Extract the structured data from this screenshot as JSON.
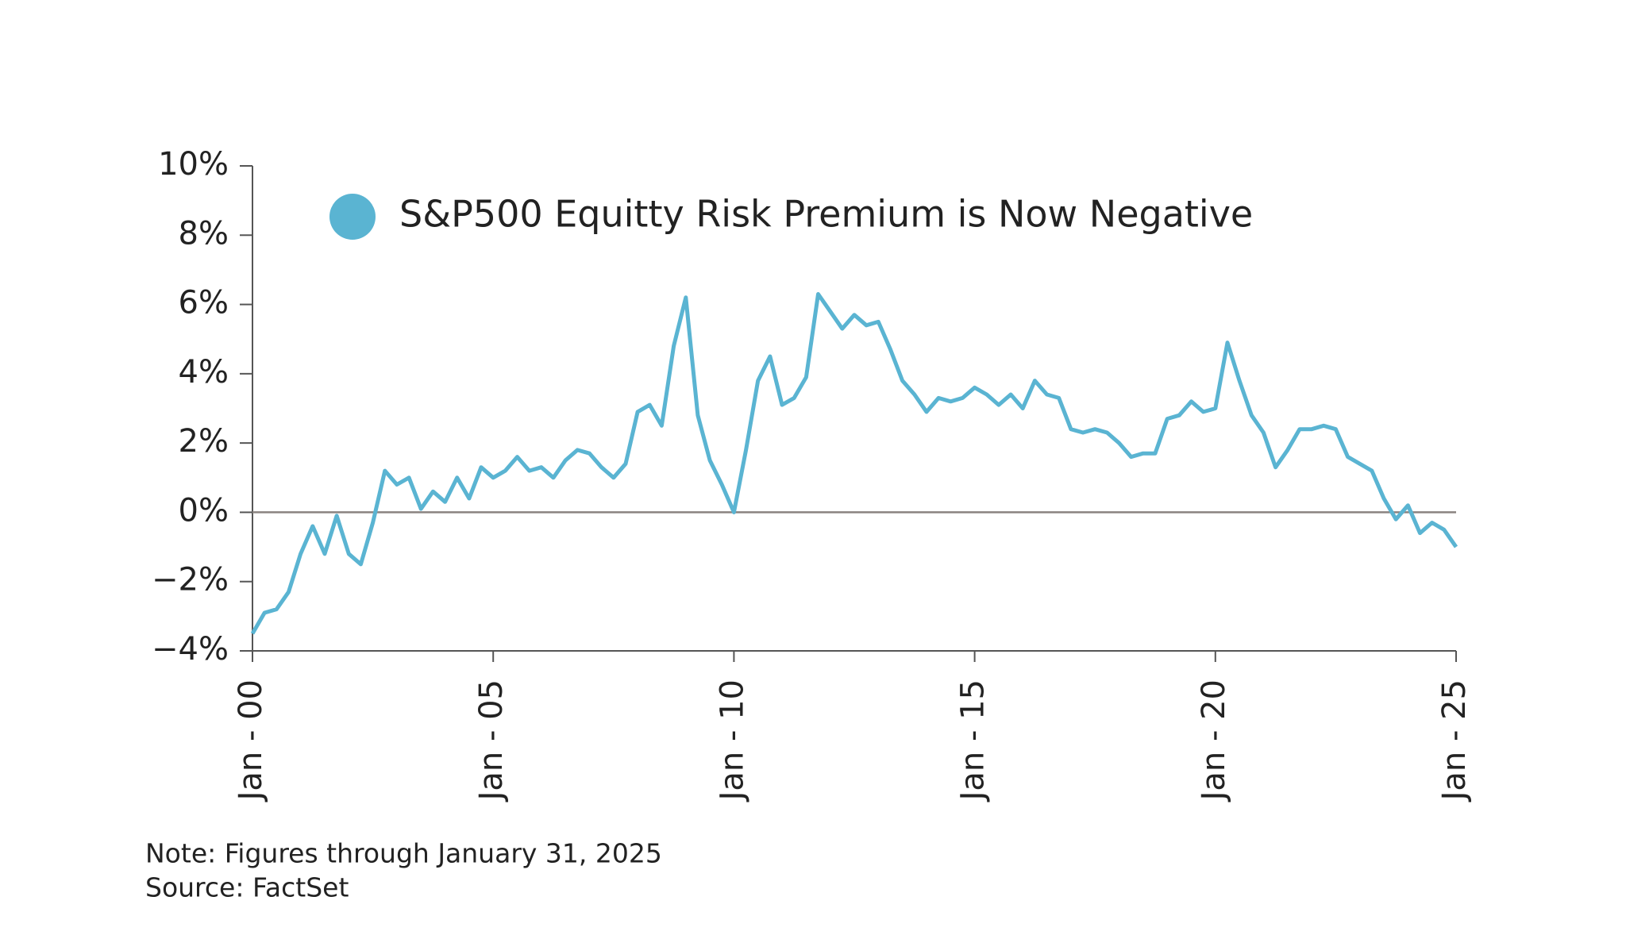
{
  "chart_data": {
    "type": "line",
    "xlim": [
      2000,
      2025
    ],
    "xticks": [
      {
        "value": 2000,
        "label": "Jan - 00"
      },
      {
        "value": 2005,
        "label": "Jan - 05"
      },
      {
        "value": 2010,
        "label": "Jan - 10"
      },
      {
        "value": 2015,
        "label": "Jan - 15"
      },
      {
        "value": 2020,
        "label": "Jan - 20"
      },
      {
        "value": 2025,
        "label": "Jan - 25"
      }
    ],
    "ylim": [
      -4,
      10
    ],
    "yticks": [
      {
        "value": 10,
        "label": "10%"
      },
      {
        "value": 8,
        "label": "8%"
      },
      {
        "value": 6,
        "label": "6%"
      },
      {
        "value": 4,
        "label": "4%"
      },
      {
        "value": 2,
        "label": "2%"
      },
      {
        "value": 0,
        "label": "0%"
      },
      {
        "value": -2,
        "label": "−2%"
      },
      {
        "value": -4,
        "label": "−4%"
      }
    ],
    "x": [
      2000,
      2000.25,
      2000.5,
      2000.75,
      2001,
      2001.25,
      2001.5,
      2001.75,
      2002,
      2002.25,
      2002.5,
      2002.75,
      2003,
      2003.25,
      2003.5,
      2003.75,
      2004,
      2004.25,
      2004.5,
      2004.75,
      2005,
      2005.25,
      2005.5,
      2005.75,
      2006,
      2006.25,
      2006.5,
      2006.75,
      2007,
      2007.25,
      2007.5,
      2007.75,
      2008,
      2008.25,
      2008.5,
      2008.75,
      2009,
      2009.25,
      2009.5,
      2009.75,
      2010,
      2010.25,
      2010.5,
      2010.75,
      2011,
      2011.25,
      2011.5,
      2011.75,
      2012,
      2012.25,
      2012.5,
      2012.75,
      2013,
      2013.25,
      2013.5,
      2013.75,
      2014,
      2014.25,
      2014.5,
      2014.75,
      2015,
      2015.25,
      2015.5,
      2015.75,
      2016,
      2016.25,
      2016.5,
      2016.75,
      2017,
      2017.25,
      2017.5,
      2017.75,
      2018,
      2018.25,
      2018.5,
      2018.75,
      2019,
      2019.25,
      2019.5,
      2019.75,
      2020,
      2020.25,
      2020.5,
      2020.75,
      2021,
      2021.25,
      2021.5,
      2021.75,
      2022,
      2022.25,
      2022.5,
      2022.75,
      2023,
      2023.25,
      2023.5,
      2023.75,
      2024,
      2024.25,
      2024.5,
      2024.75,
      2025
    ],
    "series": [
      {
        "name": "S&P500 Equitty Risk Premium is Now Negative",
        "color": "#5ab4d2",
        "values": [
          -3.5,
          -2.9,
          -2.8,
          -2.3,
          -1.2,
          -0.4,
          -1.2,
          -0.1,
          -1.2,
          -1.5,
          -0.3,
          1.2,
          0.8,
          1.0,
          0.1,
          0.6,
          0.3,
          1.0,
          0.4,
          1.3,
          1.0,
          1.2,
          1.6,
          1.2,
          1.3,
          1.0,
          1.5,
          1.8,
          1.7,
          1.3,
          1.0,
          1.4,
          2.9,
          3.1,
          2.5,
          4.8,
          6.2,
          2.8,
          1.5,
          0.8,
          0.0,
          1.8,
          3.8,
          4.5,
          3.1,
          3.3,
          3.9,
          6.3,
          5.8,
          5.3,
          5.7,
          5.4,
          5.5,
          4.7,
          3.8,
          3.4,
          2.9,
          3.3,
          3.2,
          3.3,
          3.6,
          3.4,
          3.1,
          3.4,
          3.0,
          3.8,
          3.4,
          3.3,
          2.4,
          2.3,
          2.4,
          2.3,
          2.0,
          1.6,
          1.7,
          1.7,
          2.7,
          2.8,
          3.2,
          2.9,
          3.0,
          4.9,
          3.8,
          2.8,
          2.3,
          1.3,
          1.8,
          2.4,
          2.4,
          2.5,
          2.4,
          1.6,
          1.4,
          1.2,
          0.4,
          -0.2,
          0.2,
          -0.6,
          -0.3,
          -0.5,
          -1.0
        ]
      }
    ],
    "note": "Note: Figures through January 31, 2025",
    "source": "Source: FactSet"
  }
}
